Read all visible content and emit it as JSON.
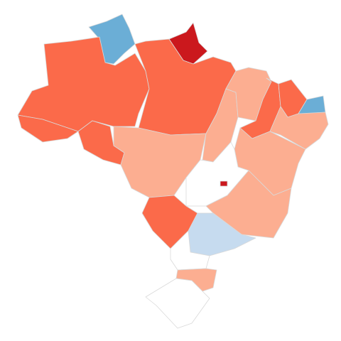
{
  "map": {
    "regions": [
      {
        "color": "#6baed6"
      },
      {
        "color": "#cb181d"
      },
      {
        "color": "#fb6a4a"
      },
      {
        "color": "#fb6a4a"
      },
      {
        "color": "#fb6a4a"
      },
      {
        "color": "#fb6a4a"
      },
      {
        "color": "#fcae91"
      },
      {
        "color": "#fcae91"
      },
      {
        "color": "#fcae91"
      },
      {
        "color": "#fb6a4a"
      },
      {
        "color": "#fb6a4a"
      },
      {
        "color": "#6baed6"
      },
      {
        "color": "#fcae91"
      },
      {
        "color": "#fcae91"
      },
      {
        "color": "#ffffff"
      },
      {
        "color": "#fcae91"
      },
      {
        "color": "#fb6a4a"
      },
      {
        "color": "#c6dbef"
      },
      {
        "color": "#ffffff"
      },
      {
        "color": "#fcae91"
      },
      {
        "color": "#ffffff"
      },
      {
        "color": "#cb181d"
      }
    ]
  }
}
